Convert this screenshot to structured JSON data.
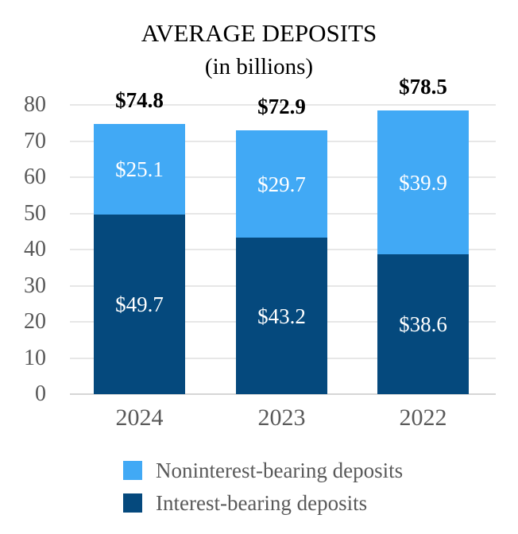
{
  "title": {
    "line1": "AVERAGE DEPOSITS",
    "line2": "(in billions)"
  },
  "chart_data": {
    "type": "bar",
    "stacked": true,
    "title": "AVERAGE DEPOSITS",
    "subtitle": "(in billions)",
    "categories": [
      "2024",
      "2023",
      "2022"
    ],
    "series": [
      {
        "name": "Interest-bearing deposits",
        "color": "#05497D",
        "values": [
          49.7,
          43.2,
          38.6
        ],
        "value_labels": [
          "$49.7",
          "$43.2",
          "$38.6"
        ]
      },
      {
        "name": "Noninterest-bearing deposits",
        "color": "#41A9F5",
        "values": [
          25.1,
          29.7,
          39.9
        ],
        "value_labels": [
          "$25.1",
          "$29.7",
          "$39.9"
        ]
      }
    ],
    "totals": [
      74.8,
      72.9,
      78.5
    ],
    "total_labels": [
      "$74.8",
      "$72.9",
      "$78.5"
    ],
    "ylim": [
      0,
      80
    ],
    "y_ticks": [
      0,
      10,
      20,
      30,
      40,
      50,
      60,
      70,
      80
    ],
    "grid": true,
    "legend_position": "bottom"
  },
  "legend": {
    "items": [
      {
        "label": "Noninterest-bearing deposits",
        "color": "#41A9F5"
      },
      {
        "label": "Interest-bearing deposits",
        "color": "#05497D"
      }
    ]
  },
  "colors": {
    "noninterest_blue": "#41A9F5",
    "interest_dark_blue": "#05497D",
    "axis_text_gray": "#595959",
    "gridline_gray": "#E7E7E7",
    "baseline_gray": "#D6D6D6",
    "segment_label_white": "#FFFFFF",
    "total_label_black": "#000000"
  }
}
